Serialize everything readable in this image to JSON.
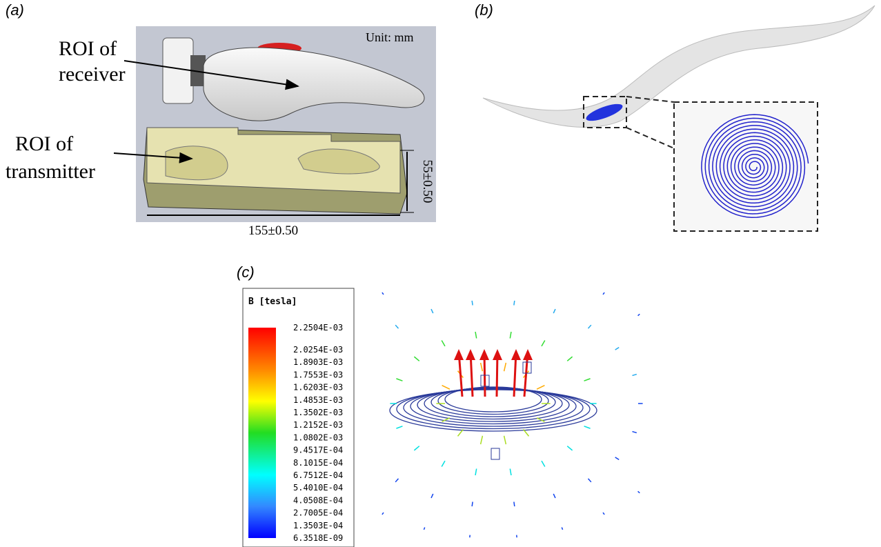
{
  "panel_a": {
    "label": "(a)",
    "roi_receiver": [
      "ROI of",
      "receiver"
    ],
    "roi_transmitter": [
      "ROI of",
      "transmitter"
    ],
    "unit": "Unit: mm",
    "height_dim": "55±0.50",
    "length_dim": "155±0.50"
  },
  "panel_b": {
    "label": "(b)"
  },
  "panel_c": {
    "label": "(c)",
    "legend_title": "B [tesla]",
    "legend_values": [
      "2.2504E-03",
      "2.0254E-03",
      "1.8903E-03",
      "1.7553E-03",
      "1.6203E-03",
      "1.4853E-03",
      "1.3502E-03",
      "1.2152E-03",
      "1.0802E-03",
      "9.4517E-04",
      "8.1015E-04",
      "6.7512E-04",
      "5.4010E-04",
      "4.0508E-04",
      "2.7005E-04",
      "1.3503E-04",
      "6.3518E-09"
    ]
  }
}
